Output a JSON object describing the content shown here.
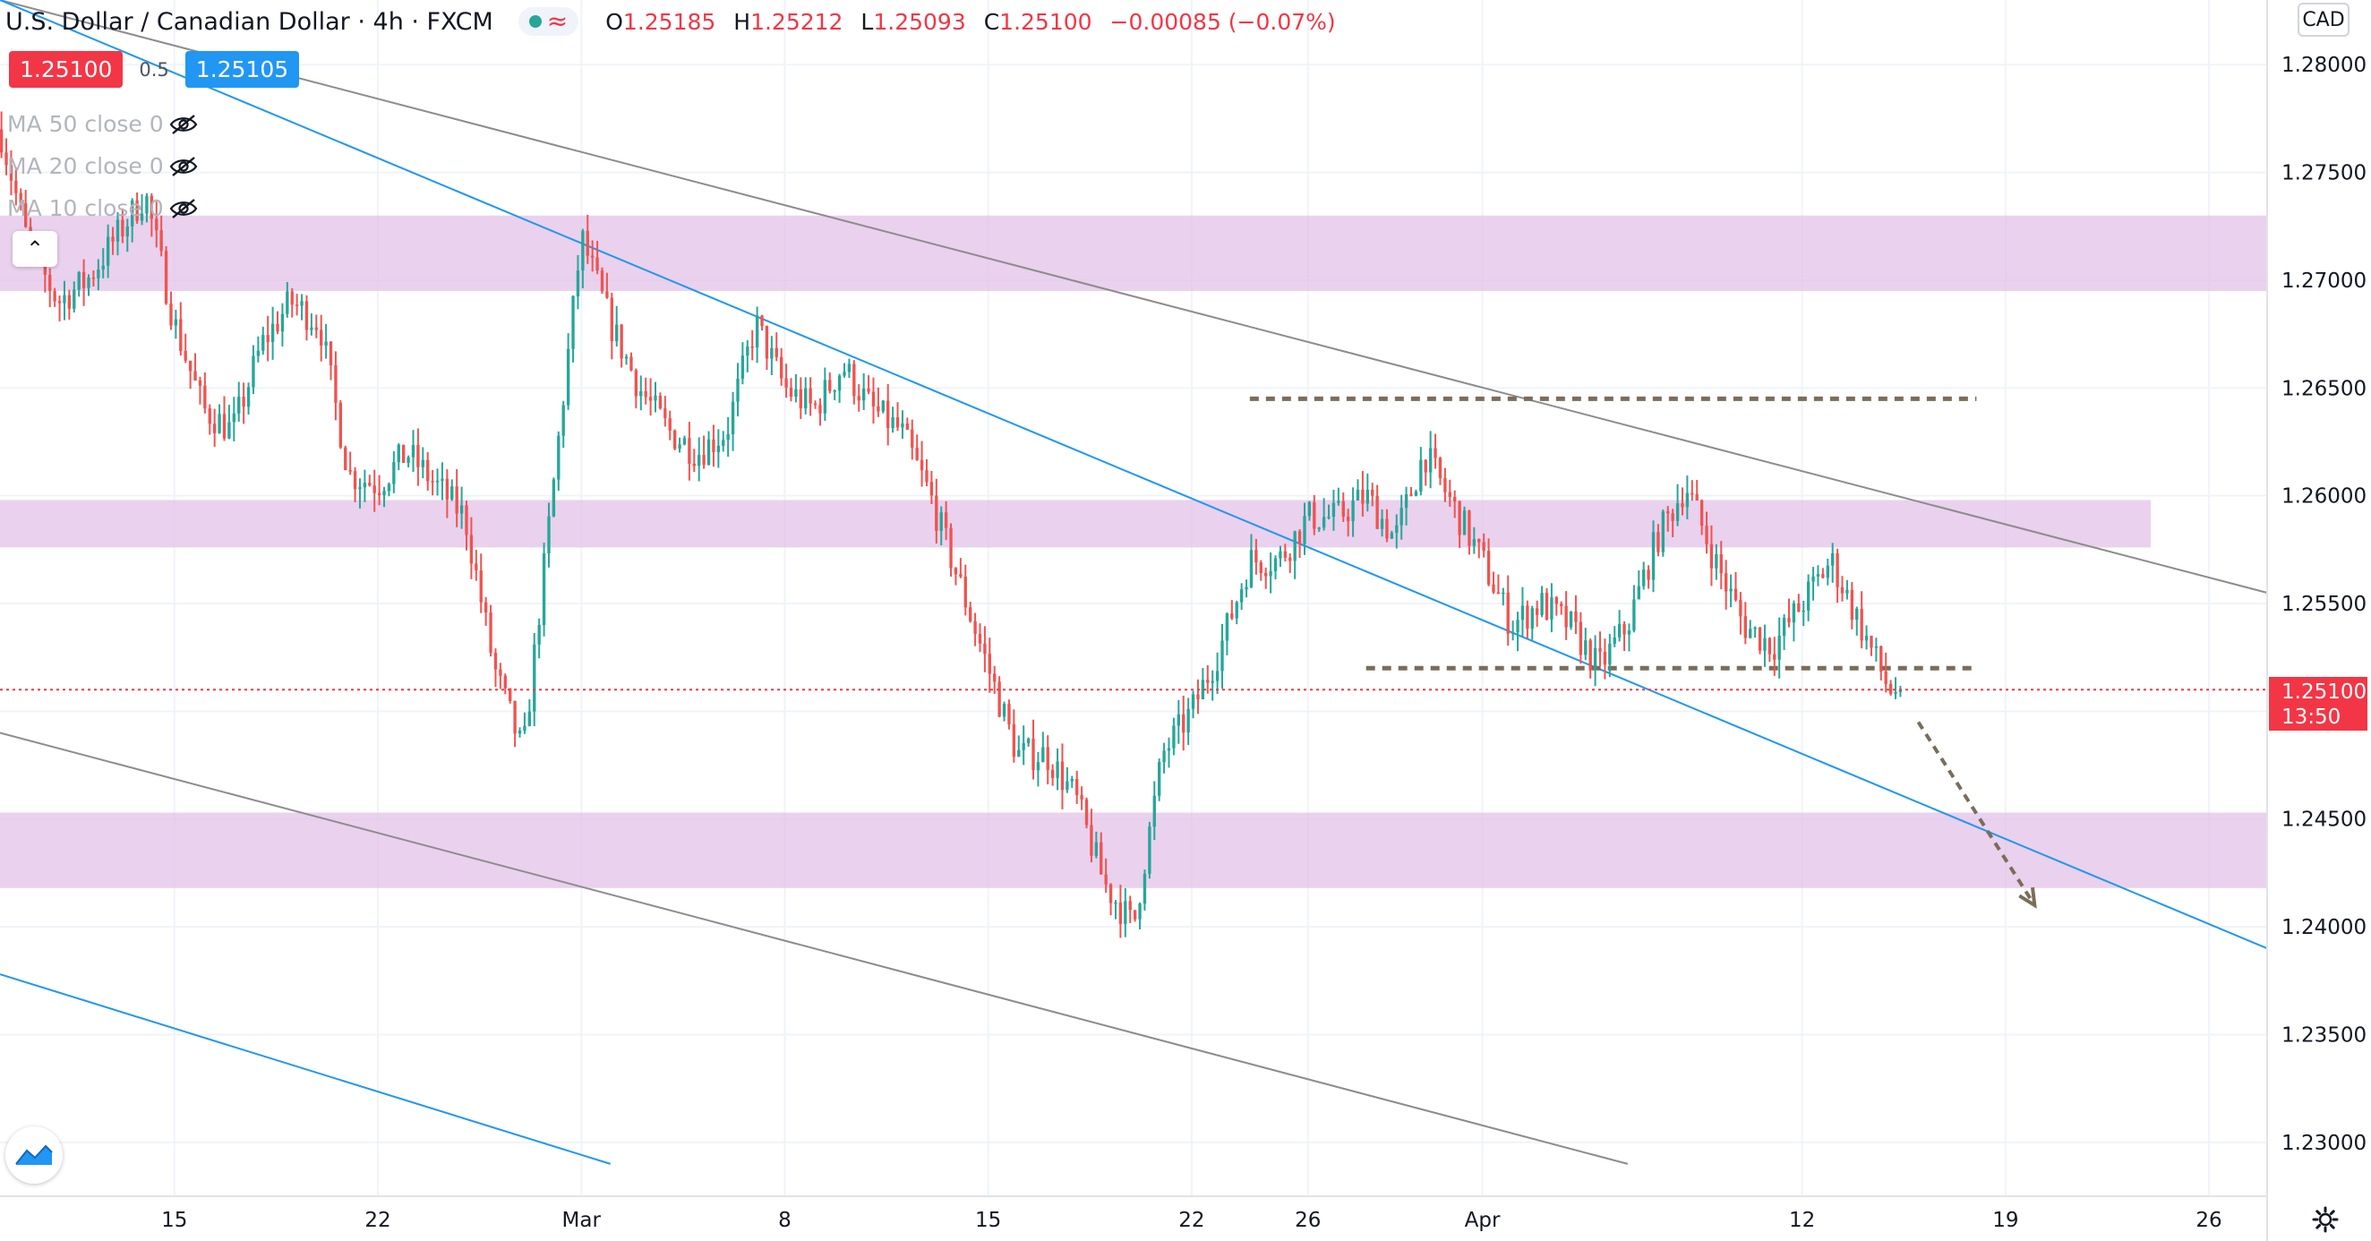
{
  "header": {
    "symbol": "U.S. Dollar / Canadian Dollar · 4h · FXCM",
    "o_label": "O",
    "o": "1.25185",
    "h_label": "H",
    "h": "1.25212",
    "l_label": "L",
    "l": "1.25093",
    "c_label": "C",
    "c": "1.25100",
    "change": "−0.00085 (−0.07%)"
  },
  "quote": {
    "bid": "1.25100",
    "spread": "0.5",
    "ask": "1.25105"
  },
  "indicators": [
    {
      "label": "MA 50 close 0",
      "icon": "eye-off-icon"
    },
    {
      "label": "MA 20 close 0",
      "icon": "eye-off-icon"
    },
    {
      "label": "MA 10 close 0",
      "icon": "eye-off-icon"
    }
  ],
  "currency_button": "CAD",
  "current_price": {
    "price": "1.25100",
    "countdown": "13:50"
  },
  "colors": {
    "up": "#26a69a",
    "down": "#ef5350",
    "zone": "#e1bee7",
    "trend_gray": "#8c8c8c",
    "trend_blue": "#2196f3",
    "level": "#7a6d5a"
  },
  "chart_data": {
    "type": "candlestick",
    "interval": "4h",
    "y_range": [
      1.2275,
      1.283
    ],
    "y_ticks": [
      "1.28000",
      "1.27500",
      "1.27000",
      "1.26500",
      "1.26000",
      "1.25500",
      "1.25000",
      "1.24500",
      "1.24000",
      "1.23500",
      "1.23000"
    ],
    "x_ticks": [
      "15",
      "22",
      "Mar",
      "8",
      "15",
      "22",
      "26",
      "Apr",
      "12",
      "19",
      "26"
    ],
    "x_tick_dates": [
      "2021-02-15",
      "2021-02-22",
      "2021-03-01",
      "2021-03-08",
      "2021-03-15",
      "2021-03-22",
      "2021-03-26",
      "2021-04-01",
      "2021-04-12",
      "2021-04-19",
      "2021-04-26"
    ],
    "x_range": [
      "2021-02-09",
      "2021-04-28"
    ],
    "last_candle_date": "2021-04-15",
    "close_path": [
      [
        "2021-02-09",
        1.277
      ],
      [
        "2021-02-10",
        1.2715
      ],
      [
        "2021-02-11",
        1.269
      ],
      [
        "2021-02-12",
        1.27
      ],
      [
        "2021-02-13",
        1.272
      ],
      [
        "2021-02-14",
        1.274
      ],
      [
        "2021-02-15",
        1.268
      ],
      [
        "2021-02-16",
        1.264
      ],
      [
        "2021-02-17",
        1.263
      ],
      [
        "2021-02-18",
        1.267
      ],
      [
        "2021-02-19",
        1.269
      ],
      [
        "2021-02-20",
        1.268
      ],
      [
        "2021-02-21",
        1.261
      ],
      [
        "2021-02-22",
        1.2605
      ],
      [
        "2021-02-23",
        1.262
      ],
      [
        "2021-02-24",
        1.2605
      ],
      [
        "2021-02-25",
        1.259
      ],
      [
        "2021-02-26",
        1.252
      ],
      [
        "2021-02-27",
        1.248
      ],
      [
        "2021-02-28",
        1.26
      ],
      [
        "2021-03-01",
        1.272
      ],
      [
        "2021-03-02",
        1.268
      ],
      [
        "2021-03-03",
        1.265
      ],
      [
        "2021-03-04",
        1.263
      ],
      [
        "2021-03-05",
        1.262
      ],
      [
        "2021-03-06",
        1.263
      ],
      [
        "2021-03-07",
        1.268
      ],
      [
        "2021-03-08",
        1.265
      ],
      [
        "2021-03-09",
        1.264
      ],
      [
        "2021-03-10",
        1.266
      ],
      [
        "2021-03-11",
        1.264
      ],
      [
        "2021-03-12",
        1.263
      ],
      [
        "2021-03-13",
        1.26
      ],
      [
        "2021-03-14",
        1.256
      ],
      [
        "2021-03-15",
        1.252
      ],
      [
        "2021-03-16",
        1.248
      ],
      [
        "2021-03-17",
        1.248
      ],
      [
        "2021-03-18",
        1.246
      ],
      [
        "2021-03-19",
        1.242
      ],
      [
        "2021-03-20",
        1.24
      ],
      [
        "2021-03-21",
        1.248
      ],
      [
        "2021-03-22",
        1.25
      ],
      [
        "2021-03-23",
        1.253
      ],
      [
        "2021-03-24",
        1.257
      ],
      [
        "2021-03-25",
        1.257
      ],
      [
        "2021-03-26",
        1.259
      ],
      [
        "2021-03-27",
        1.259
      ],
      [
        "2021-03-28",
        1.26
      ],
      [
        "2021-03-29",
        1.258
      ],
      [
        "2021-03-30",
        1.262
      ],
      [
        "2021-03-31",
        1.2595
      ],
      [
        "2021-04-01",
        1.257
      ],
      [
        "2021-04-02",
        1.254
      ],
      [
        "2021-04-03",
        1.255
      ],
      [
        "2021-04-04",
        1.254
      ],
      [
        "2021-04-05",
        1.252
      ],
      [
        "2021-04-06",
        1.254
      ],
      [
        "2021-04-07",
        1.258
      ],
      [
        "2021-04-08",
        1.2605
      ],
      [
        "2021-04-09",
        1.257
      ],
      [
        "2021-04-10",
        1.254
      ],
      [
        "2021-04-11",
        1.253
      ],
      [
        "2021-04-12",
        1.255
      ],
      [
        "2021-04-13",
        1.257
      ],
      [
        "2021-04-14",
        1.254
      ],
      [
        "2021-04-15",
        1.251
      ]
    ],
    "zones": [
      {
        "from": 1.2695,
        "to": 1.273,
        "start": "2021-02-09",
        "end": "2021-04-28"
      },
      {
        "from": 1.2576,
        "to": 1.2598,
        "start": "2021-02-09",
        "end": "2021-04-24"
      },
      {
        "from": 1.2418,
        "to": 1.2453,
        "start": "2021-02-09",
        "end": "2021-04-28"
      }
    ],
    "horizontal_levels": [
      {
        "value": 1.2645,
        "start": "2021-03-24",
        "end": "2021-04-18"
      },
      {
        "value": 1.252,
        "start": "2021-03-28",
        "end": "2021-04-18"
      }
    ],
    "trendlines": [
      {
        "color": "gray",
        "points": [
          [
            "2021-02-09",
            1.283
          ],
          [
            "2021-04-28",
            1.2555
          ]
        ]
      },
      {
        "color": "gray",
        "points": [
          [
            "2021-02-09",
            1.249
          ],
          [
            "2021-04-06",
            1.229
          ]
        ]
      },
      {
        "color": "blue",
        "points": [
          [
            "2021-02-09",
            1.283
          ],
          [
            "2021-04-28",
            1.239
          ]
        ]
      },
      {
        "color": "blue",
        "points": [
          [
            "2021-02-09",
            1.2378
          ],
          [
            "2021-03-02",
            1.229
          ]
        ]
      }
    ],
    "projection_arrow": {
      "from": [
        "2021-04-16",
        1.2495
      ],
      "to": [
        "2021-04-20",
        1.241
      ]
    }
  }
}
